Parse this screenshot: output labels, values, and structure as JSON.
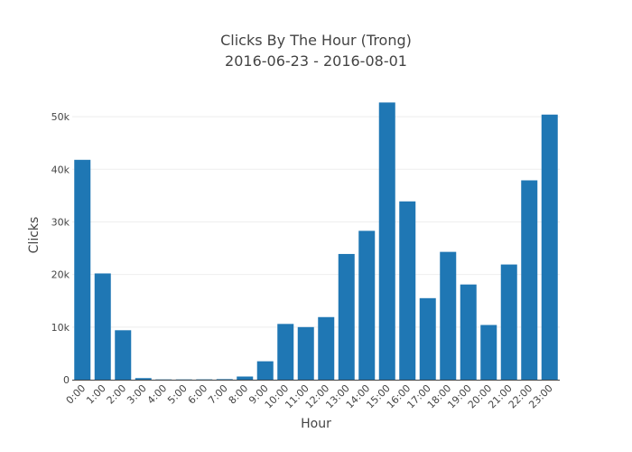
{
  "chart_data": {
    "type": "bar",
    "title": "Clicks By The Hour (Trong)",
    "subtitle": "2016-06-23 - 2016-08-01",
    "xlabel": "Hour",
    "ylabel": "Clicks",
    "categories": [
      "0:00",
      "1:00",
      "2:00",
      "3:00",
      "4:00",
      "5:00",
      "6:00",
      "7:00",
      "8:00",
      "9:00",
      "10:00",
      "11:00",
      "12:00",
      "13:00",
      "14:00",
      "15:00",
      "16:00",
      "17:00",
      "18:00",
      "19:00",
      "20:00",
      "21:00",
      "22:00",
      "23:00"
    ],
    "values": [
      41800,
      20200,
      9400,
      300,
      50,
      50,
      60,
      100,
      600,
      3500,
      10600,
      10000,
      11900,
      23900,
      28300,
      52700,
      33900,
      15500,
      24300,
      18100,
      10400,
      21900,
      37900,
      50400
    ],
    "ylim": [
      0,
      55000
    ],
    "yticks": [
      0,
      10000,
      20000,
      30000,
      40000,
      50000
    ],
    "ytick_labels": [
      "0",
      "10k",
      "20k",
      "30k",
      "40k",
      "50k"
    ],
    "grid": true,
    "bar_color": "#1f77b4"
  }
}
